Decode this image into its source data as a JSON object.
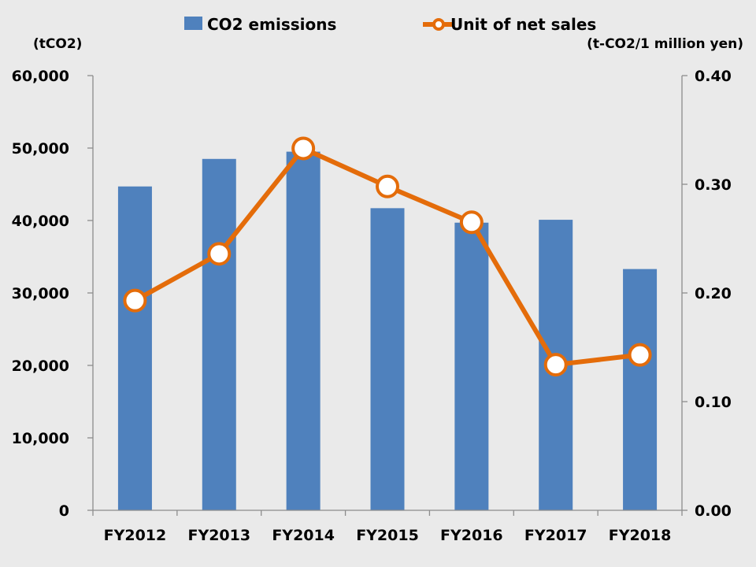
{
  "chart_data": {
    "type": "bar+line",
    "categories": [
      "FY2012",
      "FY2013",
      "FY2014",
      "FY2015",
      "FY2016",
      "FY2017",
      "FY2018"
    ],
    "series": [
      {
        "name": "CO2 emissions",
        "type": "bar",
        "axis": "left",
        "color": "#4f81bd",
        "values": [
          44700,
          48500,
          49500,
          41700,
          39700,
          40100,
          33300
        ]
      },
      {
        "name": "Unit of net sales",
        "type": "line",
        "axis": "right",
        "color": "#e46c0a",
        "marker": "hollow-circle",
        "values": [
          0.193,
          0.236,
          0.333,
          0.298,
          0.265,
          0.134,
          0.143
        ]
      }
    ],
    "y_left": {
      "unit": "(tCO2)",
      "ylim": [
        0,
        60000
      ],
      "ticks": [
        "0",
        "10,000",
        "20,000",
        "30,000",
        "40,000",
        "50,000",
        "60,000"
      ]
    },
    "y_right": {
      "unit": "(t-CO2/1 million yen)",
      "ylim": [
        0,
        0.4
      ],
      "ticks": [
        "0.00",
        "0.10",
        "0.20",
        "0.30",
        "0.40"
      ]
    },
    "grid": false,
    "legend": "top"
  }
}
